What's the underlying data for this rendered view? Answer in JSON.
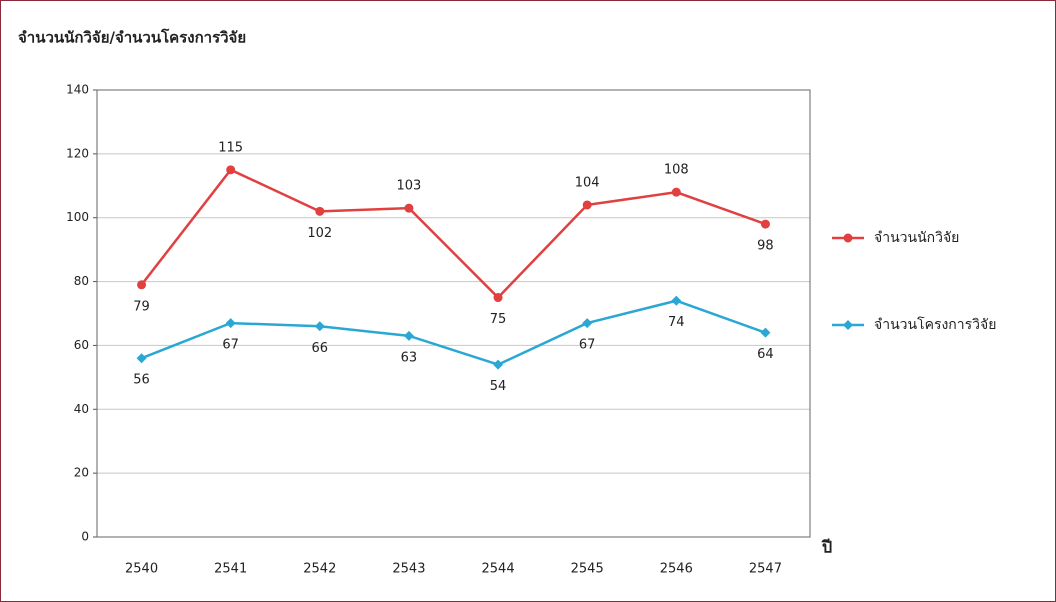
{
  "chart_data": {
    "type": "line",
    "title": "จำนวนนักวิจัย/จำนวนโครงการวิจัย",
    "x_label": "ปี",
    "categories": [
      "2540",
      "2541",
      "2542",
      "2543",
      "2544",
      "2545",
      "2546",
      "2547"
    ],
    "series": [
      {
        "name": "จำนวนนักวิจัย",
        "color": "#e0403f",
        "values": [
          79,
          115,
          102,
          103,
          75,
          104,
          108,
          98
        ]
      },
      {
        "name": "จำนวนโครงการวิจัย",
        "color": "#2aa7d4",
        "values": [
          56,
          67,
          66,
          63,
          54,
          67,
          74,
          64
        ]
      }
    ],
    "ylim": [
      0,
      140
    ],
    "yticks": [
      0,
      20,
      40,
      60,
      80,
      100,
      120,
      140
    ],
    "grid": true,
    "legend": "right"
  }
}
